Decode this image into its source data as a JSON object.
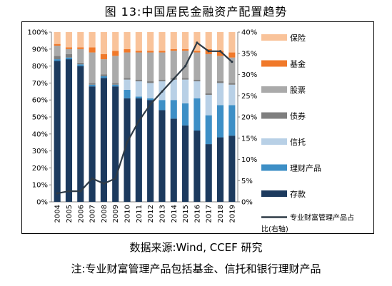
{
  "figure": {
    "title": "图 13:中国居民金融资产配置趋势",
    "source": "数据来源:Wind, CCEF 研究",
    "note": "注:专业财富管理产品包括基金、信托和银行理财产品"
  },
  "chart_data": {
    "type": "bar",
    "stacked": true,
    "percent_stacked": true,
    "categories": [
      "2004",
      "2005",
      "2006",
      "2007",
      "2008",
      "2009",
      "2010",
      "2011",
      "2012",
      "2013",
      "2014",
      "2015",
      "2016",
      "2017",
      "2018",
      "2019"
    ],
    "left_axis": {
      "ylim": [
        0,
        100
      ],
      "ticks": [
        "0%",
        "10%",
        "20%",
        "30%",
        "40%",
        "50%",
        "60%",
        "70%",
        "80%",
        "90%",
        "100%"
      ]
    },
    "right_axis": {
      "ylim": [
        0,
        40
      ],
      "ticks": [
        "0%",
        "5%",
        "10%",
        "15%",
        "20%",
        "25%",
        "30%",
        "35%",
        "40%"
      ]
    },
    "series": [
      {
        "name": "存款",
        "color": "#1c3a5e",
        "values": [
          83,
          84,
          80,
          68,
          73,
          68,
          61,
          61,
          60,
          54,
          49,
          45,
          42,
          34,
          38,
          39
        ]
      },
      {
        "name": "理财产品",
        "color": "#3d8fc6",
        "values": [
          1,
          1,
          1,
          1,
          1,
          1,
          5,
          1,
          1,
          6,
          11,
          13,
          19,
          17,
          19,
          18
        ]
      },
      {
        "name": "信托",
        "color": "#b8d0e6",
        "values": [
          0,
          0,
          0,
          0,
          0,
          0,
          6,
          9,
          9,
          11,
          12,
          14,
          10,
          12,
          13,
          12
        ]
      },
      {
        "name": "债券",
        "color": "#7f7f7f",
        "values": [
          2,
          2,
          1,
          1,
          1,
          1,
          1,
          1,
          1,
          1,
          1,
          1,
          1,
          1,
          1,
          1
        ]
      },
      {
        "name": "股票",
        "color": "#aaaaaa",
        "values": [
          6,
          3,
          8,
          18,
          9,
          16,
          15,
          16,
          17,
          16,
          16,
          16,
          16,
          23,
          15,
          15
        ]
      },
      {
        "name": "基金",
        "color": "#f0792a",
        "values": [
          1,
          1,
          1,
          3,
          3,
          3,
          2,
          1,
          1,
          1,
          1,
          1,
          1,
          3,
          3,
          3
        ]
      },
      {
        "name": "保险",
        "color": "#f9c39a",
        "values": [
          7,
          9,
          9,
          9,
          13,
          11,
          10,
          11,
          11,
          11,
          10,
          10,
          11,
          10,
          11,
          12
        ]
      }
    ],
    "line_series": {
      "name": "专业财富管理产品占比(右轴)",
      "color": "#2f3b46",
      "axis": "right",
      "values": [
        2,
        2.5,
        2.5,
        5.5,
        4.3,
        5.5,
        14,
        19,
        23,
        26,
        29,
        32,
        37.5,
        35.5,
        35.5,
        33
      ]
    },
    "legend_placement": "right",
    "grid": false
  }
}
